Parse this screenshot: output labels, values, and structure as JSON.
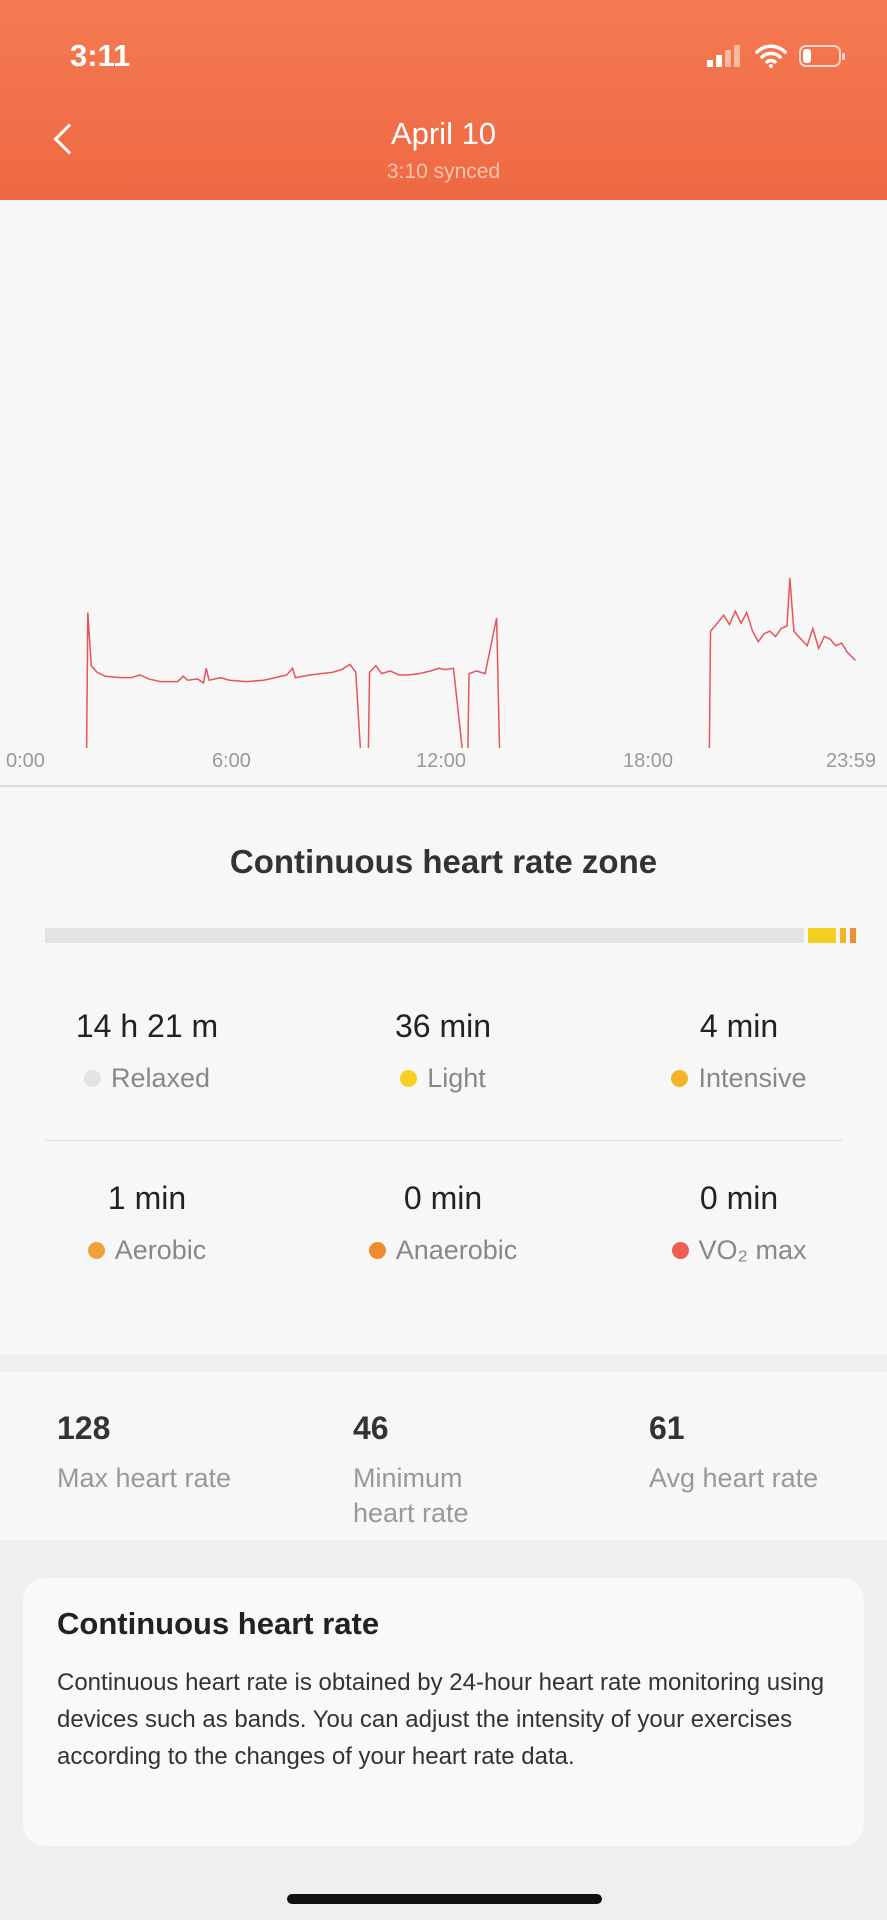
{
  "status": {
    "time": "3:11",
    "icons": [
      "location-arrow-icon",
      "signal-icon",
      "wifi-icon",
      "battery-icon"
    ]
  },
  "header": {
    "title": "April 10",
    "subtitle": "3:10 synced",
    "back_icon": "chevron-left-icon"
  },
  "chart_data": {
    "type": "line",
    "unit": "bpm",
    "x_ticks": [
      "0:00",
      "6:00",
      "12:00",
      "18:00",
      "23:59"
    ],
    "color": "#e8545a",
    "segments": [
      [
        [
          "01:42",
          0
        ],
        [
          "01:44",
          102
        ],
        [
          "01:50",
          62
        ],
        [
          "02:00",
          57
        ],
        [
          "02:15",
          54
        ],
        [
          "02:40",
          53
        ],
        [
          "03:00",
          53
        ],
        [
          "03:15",
          55
        ],
        [
          "03:30",
          52
        ],
        [
          "03:50",
          50
        ],
        [
          "04:20",
          50
        ],
        [
          "04:30",
          54
        ],
        [
          "04:38",
          51
        ],
        [
          "04:55",
          52
        ],
        [
          "05:05",
          49
        ],
        [
          "05:10",
          60
        ],
        [
          "05:15",
          51
        ],
        [
          "05:35",
          53
        ],
        [
          "05:50",
          51
        ],
        [
          "06:20",
          50
        ],
        [
          "06:50",
          51
        ],
        [
          "07:10",
          53
        ],
        [
          "07:30",
          55
        ],
        [
          "07:40",
          60
        ],
        [
          "07:45",
          53
        ],
        [
          "08:10",
          55
        ],
        [
          "08:30",
          56
        ],
        [
          "08:50",
          57
        ],
        [
          "09:05",
          59
        ],
        [
          "09:20",
          63
        ],
        [
          "09:30",
          57
        ],
        [
          "09:38",
          0
        ]
      ],
      [
        [
          "09:52",
          0
        ],
        [
          "09:54",
          57
        ],
        [
          "10:05",
          62
        ],
        [
          "10:15",
          56
        ],
        [
          "10:30",
          58
        ],
        [
          "10:45",
          55
        ],
        [
          "11:00",
          55
        ],
        [
          "11:20",
          56
        ],
        [
          "11:40",
          58
        ],
        [
          "11:55",
          60
        ],
        [
          "12:05",
          59
        ],
        [
          "12:20",
          60
        ],
        [
          "12:35",
          0
        ]
      ],
      [
        [
          "12:45",
          0
        ],
        [
          "12:47",
          56
        ],
        [
          "13:00",
          58
        ],
        [
          "13:15",
          56
        ],
        [
          "13:35",
          98
        ],
        [
          "13:40",
          0
        ]
      ],
      [
        [
          "19:45",
          0
        ],
        [
          "19:47",
          88
        ],
        [
          "19:55",
          92
        ],
        [
          "20:10",
          100
        ],
        [
          "20:20",
          93
        ],
        [
          "20:30",
          103
        ],
        [
          "20:40",
          94
        ],
        [
          "20:50",
          102
        ],
        [
          "21:00",
          88
        ],
        [
          "21:10",
          80
        ],
        [
          "21:20",
          86
        ],
        [
          "21:30",
          88
        ],
        [
          "21:40",
          84
        ],
        [
          "21:50",
          90
        ],
        [
          "22:00",
          92
        ],
        [
          "22:05",
          128
        ],
        [
          "22:12",
          88
        ],
        [
          "22:20",
          84
        ],
        [
          "22:35",
          77
        ],
        [
          "22:45",
          90
        ],
        [
          "22:55",
          75
        ],
        [
          "23:05",
          84
        ],
        [
          "23:15",
          82
        ],
        [
          "23:25",
          77
        ],
        [
          "23:35",
          79
        ],
        [
          "23:45",
          72
        ],
        [
          "23:59",
          66
        ]
      ]
    ]
  },
  "zone": {
    "title": "Continuous heart rate zone",
    "bar": [
      {
        "name": "Relaxed",
        "minutes": 861,
        "color": "#e3e3e3"
      },
      {
        "name": "Light",
        "minutes": 36,
        "color": "#f5d020"
      },
      {
        "name": "Intensive",
        "minutes": 4,
        "color": "#f2b52a"
      },
      {
        "name": "Aerobic",
        "minutes": 1,
        "color": "#f08c34"
      }
    ],
    "items": [
      {
        "value": "14 h 21 m",
        "label": "Relaxed",
        "color": "#e3e3e3"
      },
      {
        "value": "36  min",
        "label": "Light",
        "color": "#f5d020"
      },
      {
        "value": "4  min",
        "label": "Intensive",
        "color": "#f2b52a"
      },
      {
        "value": "1  min",
        "label": "Aerobic",
        "color": "#f0a13a"
      },
      {
        "value": "0  min",
        "label": "Anaerobic",
        "color": "#f08a2c"
      },
      {
        "value": "0  min",
        "label": "VO₂ max",
        "color": "#ec5e52"
      }
    ]
  },
  "summary": [
    {
      "value": "128",
      "label": "Max heart rate"
    },
    {
      "value": "46",
      "label": "Minimum heart rate"
    },
    {
      "value": "61",
      "label": "Avg heart rate"
    }
  ],
  "info": {
    "title": "Continuous heart rate",
    "text": "Continuous heart rate is obtained by 24-hour heart rate monitoring using devices such as bands. You can adjust the intensity of your exercises according to the changes of your heart rate data."
  }
}
